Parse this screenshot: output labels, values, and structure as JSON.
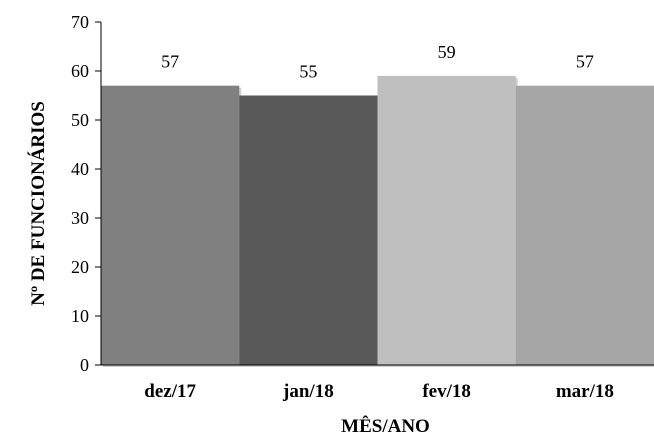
{
  "chart_data": {
    "type": "bar",
    "categories": [
      "dez/17",
      "jan/18",
      "fev/18",
      "mar/18"
    ],
    "values": [
      57,
      55,
      59,
      57
    ],
    "data_labels": [
      "57",
      "55",
      "59",
      "57"
    ],
    "bar_colors": [
      "#808080",
      "#595959",
      "#bfbfbf",
      "#a6a6a6"
    ],
    "xlabel": "MÊS/ANO",
    "ylabel": "Nº DE FUNCIONÁRIOS",
    "ylim": [
      0,
      70
    ],
    "yticks": [
      0,
      10,
      20,
      30,
      40,
      50,
      60,
      70
    ],
    "grid": false,
    "legend": "none"
  }
}
